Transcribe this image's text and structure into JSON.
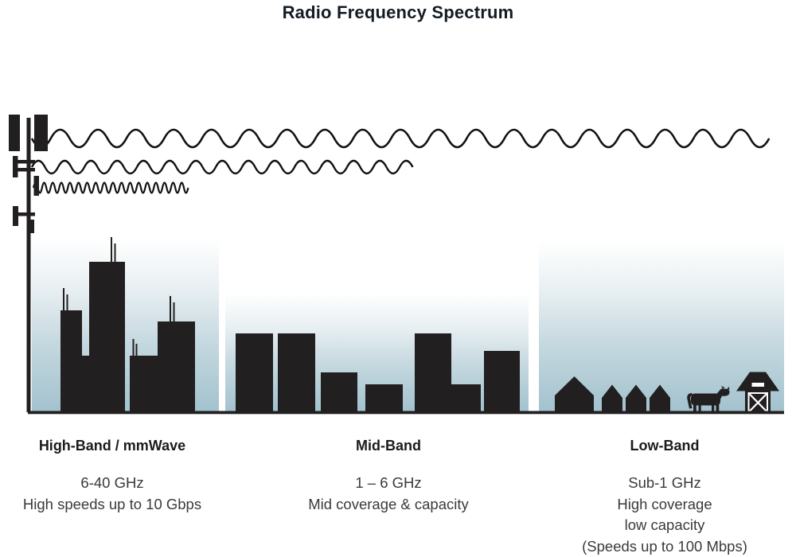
{
  "title": "Radio Frequency Spectrum",
  "bands": [
    {
      "name": "High-Band / mmWave",
      "frequency": "6-40 GHz",
      "details": [
        "High speeds up to 10 Gbps"
      ],
      "scene_icon": "skyscrapers-with-antennas",
      "wave_icon": "short-wavelength-wave"
    },
    {
      "name": "Mid-Band",
      "frequency": "1 – 6 GHz",
      "details": [
        "Mid coverage & capacity"
      ],
      "scene_icon": "mid-rise-buildings",
      "wave_icon": "medium-wavelength-wave"
    },
    {
      "name": "Low-Band",
      "frequency": "Sub-1 GHz",
      "details": [
        "High coverage",
        "low capacity",
        "(Speeds up to 100 Mbps)"
      ],
      "scene_icon": "houses-cow-and-barn",
      "wave_icon": "long-wavelength-wave"
    }
  ],
  "icons": {
    "transmitter": "cell-tower-icon"
  },
  "colors": {
    "ink": "#221f20",
    "title_text": "#141b24",
    "subtext": "#3a3a3a",
    "sky_gradient_bottom": "#a2c2ce",
    "sky_gradient_top": "#ffffff"
  }
}
